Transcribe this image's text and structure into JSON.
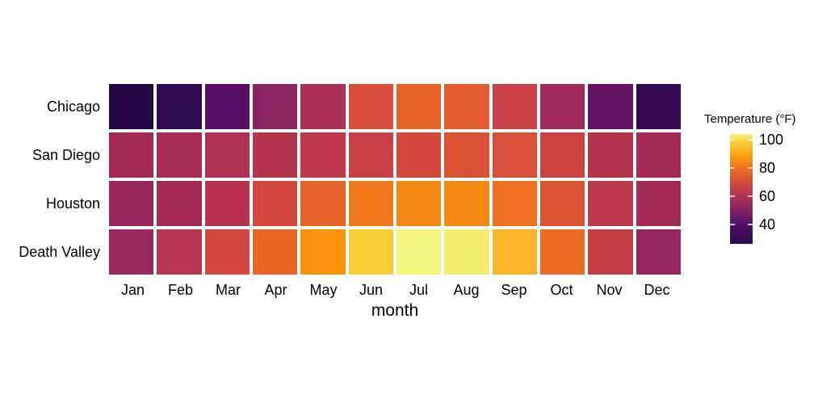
{
  "chart_data": {
    "type": "heatmap",
    "title": "",
    "xlabel": "month",
    "ylabel": "",
    "x_categories": [
      "Jan",
      "Feb",
      "Mar",
      "Apr",
      "May",
      "Jun",
      "Jul",
      "Aug",
      "Sep",
      "Oct",
      "Nov",
      "Dec"
    ],
    "y_categories": [
      "Chicago",
      "San Diego",
      "Houston",
      "Death Valley"
    ],
    "series": [
      {
        "name": "Chicago",
        "values": [
          26,
          30,
          39,
          50,
          60,
          70,
          76,
          74,
          66,
          54,
          42,
          31
        ]
      },
      {
        "name": "San Diego",
        "values": [
          57,
          58,
          60,
          62,
          64,
          67,
          70,
          72,
          71,
          68,
          62,
          57
        ]
      },
      {
        "name": "Houston",
        "values": [
          53,
          56,
          62,
          69,
          77,
          82,
          85,
          85,
          80,
          73,
          63,
          55
        ]
      },
      {
        "name": "Death Valley",
        "values": [
          54,
          60,
          69,
          77,
          87,
          96,
          104,
          102,
          92,
          78,
          64,
          53
        ]
      }
    ],
    "legend": {
      "title": "Temperature (°F)",
      "ticks": [
        40,
        60,
        80,
        100
      ],
      "range": [
        26,
        104
      ],
      "position": "right"
    },
    "colormap": "inferno",
    "grid_gap_color": "#ffffff",
    "cell_colors": [
      [
        "#250844",
        "#320B52",
        "#570E64",
        "#8A2160",
        "#AC3054",
        "#D84C3B",
        "#E96428",
        "#E25C30",
        "#C94046",
        "#A02A5B",
        "#641063",
        "#340A52"
      ],
      [
        "#A32A58",
        "#A72C56",
        "#AF3152",
        "#B6354E",
        "#BE3A4A",
        "#CA4144",
        "#D44A3C",
        "#DA5136",
        "#D74E39",
        "#CD4341",
        "#B6354E",
        "#A32A58"
      ],
      [
        "#97245C",
        "#A42A58",
        "#B93350",
        "#D4473E",
        "#E8632A",
        "#F1791B",
        "#F58713",
        "#F58713",
        "#EF6F21",
        "#DD5433",
        "#BE3949",
        "#A32A57"
      ],
      [
        "#9A2860",
        "#B63552",
        "#D4483D",
        "#E96622",
        "#F9930B",
        "#F9CB34",
        "#F4F57F",
        "#F3EB6E",
        "#FAB42A",
        "#ED6C24",
        "#C33E47",
        "#932563"
      ]
    ],
    "legend_gradient": [
      {
        "pos": 0,
        "color": "#2B0A52"
      },
      {
        "pos": 18,
        "color": "#54106A"
      },
      {
        "pos": 31,
        "color": "#872264"
      },
      {
        "pos": 44,
        "color": "#B03354"
      },
      {
        "pos": 56,
        "color": "#D54B3C"
      },
      {
        "pos": 69,
        "color": "#EF6F21"
      },
      {
        "pos": 82,
        "color": "#FAA712"
      },
      {
        "pos": 95,
        "color": "#F8D948"
      },
      {
        "pos": 100,
        "color": "#F7F08C"
      }
    ]
  }
}
